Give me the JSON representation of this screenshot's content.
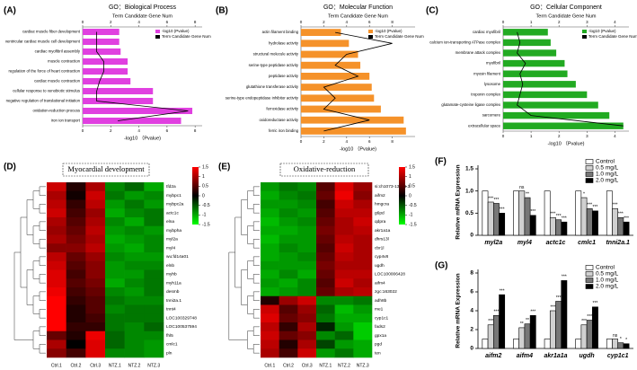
{
  "chart_data": [
    {
      "type": "bar",
      "orientation": "horizontal",
      "panel_label": "(A)",
      "title": "GO：Biological Process",
      "xlabel": "-log10 （Pvalue)",
      "x2label": "Term Candidate Gene Num",
      "categories": [
        "cardiac muscle fiber development",
        "ventricular cardiac muscle cell development",
        "cardiac myofibril assembly",
        "muscle contraction",
        "regulation of the force of heart contraction",
        "cardiac muscle contraction",
        "cellular response to xenobiotic stimulus",
        "negative regulation of translational initiation",
        "oxidation-reduction process",
        "iron ion transport"
      ],
      "series": [
        {
          "name": "-log10 (Pvalue)",
          "color": "#e040e0",
          "values": [
            2.6,
            2.6,
            2.7,
            3.2,
            3.2,
            3.4,
            5.0,
            5.0,
            7.8,
            7.0
          ]
        },
        {
          "name": "Term Candidate Gene Num",
          "color": "#000000",
          "axis": "x2",
          "values": [
            1,
            1,
            1,
            1.5,
            1.5,
            1.2,
            1,
            1,
            7.5,
            2.5
          ]
        }
      ],
      "xlim": [
        0,
        8.5
      ],
      "xticks": [
        0,
        2,
        4,
        6,
        8
      ],
      "x2lim": [
        0,
        8.5
      ],
      "x2ticks": [
        0,
        2,
        4,
        6,
        8
      ]
    },
    {
      "type": "bar",
      "orientation": "horizontal",
      "panel_label": "(B)",
      "title": "GO：Molecular Function",
      "xlabel": "-log10 （Pvalue)",
      "x2label": "Term Candidate Gene Num",
      "categories": [
        "actin filament binding",
        "hydrolase activity",
        "structural molecule activity",
        "serine-type peptidase activity",
        "peptidase activity",
        "glutathione transferase activity",
        "serine-type endopeptidase inhibitor activity",
        "ferroxidase activity",
        "oxidoreductase activity",
        "ferric iron binding"
      ],
      "series": [
        {
          "name": "-log10 (Pvalue)",
          "color": "#f5922a",
          "values": [
            3.5,
            4.2,
            5.0,
            5.2,
            6.0,
            6.2,
            6.4,
            7.0,
            9.0,
            9.2
          ]
        },
        {
          "name": "Term Candidate Gene Num",
          "color": "#000000",
          "axis": "x2",
          "values": [
            3,
            8,
            4,
            3,
            5,
            2,
            3,
            2,
            6,
            2
          ]
        }
      ],
      "xlim": [
        0,
        10
      ],
      "xticks": [
        0,
        2,
        4,
        6,
        8
      ],
      "x2lim": [
        0,
        10
      ],
      "x2ticks": [
        0,
        2,
        4,
        6,
        8
      ]
    },
    {
      "type": "bar",
      "orientation": "horizontal",
      "panel_label": "(C)",
      "title": "GO：Cellular Component",
      "xlabel": "-log10 （Pvalue)",
      "x2label": "Term Candidate Gene Num",
      "categories": [
        "cardiac myofibril",
        "calcium ion-transporting ATPase complex",
        "membrane attack complex",
        "myofibril",
        "myosin filament",
        "lysosome",
        "troponin complex",
        "glutamate-cysteine ligase complex",
        "sarcomere",
        "extracellular space"
      ],
      "series": [
        {
          "name": "-log10 (Pvalue)",
          "color": "#22aa22",
          "values": [
            1.6,
            1.7,
            1.9,
            2.2,
            2.3,
            2.6,
            3.0,
            3.4,
            3.8,
            4.3
          ]
        },
        {
          "name": "Term Candidate Gene Num",
          "color": "#000000",
          "axis": "x2",
          "values": [
            0.5,
            0.6,
            0.5,
            0.8,
            0.6,
            0.7,
            0.6,
            0.5,
            1.0,
            4.3
          ]
        }
      ],
      "xlim": [
        0,
        4.5
      ],
      "xticks": [
        0,
        1,
        2,
        3,
        4
      ],
      "x2lim": [
        0,
        4.5
      ],
      "x2ticks": [
        0,
        1,
        2,
        3,
        4
      ]
    },
    {
      "type": "heatmap",
      "panel_label": "(D)",
      "title": "Myocardial development",
      "columns": [
        "Ctrl.1",
        "Ctrl.2",
        "Ctrl.3",
        "NTZ.1",
        "NTZ.2",
        "NTZ.3"
      ],
      "rows": [
        "tfd2a",
        "mybpc1",
        "mybpc2a",
        "actc1c",
        "elna",
        "mybpha",
        "myl2a",
        "myl4",
        "wu:fd14a01",
        "elnb",
        "myhb",
        "myh11a",
        "desmb",
        "tnni2a.1",
        "tnnt4",
        "LOC100329748",
        "LOC100537594",
        "fhl5",
        "cmlc1",
        "pln"
      ],
      "values": [
        [
          1.2,
          0.2,
          1.0,
          -0.8,
          -0.6,
          -1.0
        ],
        [
          1.0,
          0.1,
          1.2,
          -0.7,
          -0.9,
          -0.8
        ],
        [
          1.1,
          0.3,
          1.1,
          -0.9,
          -0.7,
          -0.9
        ],
        [
          1.2,
          0.4,
          0.9,
          -1.0,
          -0.8,
          -0.7
        ],
        [
          1.0,
          0.5,
          1.0,
          -0.8,
          -1.0,
          -0.7
        ],
        [
          0.9,
          0.6,
          1.1,
          -0.9,
          -0.8,
          -0.9
        ],
        [
          1.0,
          0.7,
          1.0,
          -1.0,
          -0.9,
          -0.8
        ],
        [
          0.8,
          0.8,
          1.1,
          -0.9,
          -1.0,
          -0.8
        ],
        [
          1.1,
          0.6,
          0.9,
          -0.8,
          -0.9,
          -0.9
        ],
        [
          1.2,
          0.5,
          0.8,
          -0.9,
          -0.8,
          -0.8
        ],
        [
          1.3,
          0.4,
          0.8,
          -0.9,
          -0.9,
          -0.7
        ],
        [
          1.3,
          0.5,
          0.7,
          -1.0,
          -0.8,
          -0.7
        ],
        [
          1.4,
          0.4,
          0.6,
          -0.8,
          -0.9,
          -0.7
        ],
        [
          1.5,
          0.3,
          0.5,
          -0.7,
          -0.8,
          -0.8
        ],
        [
          1.5,
          0.2,
          0.5,
          -0.8,
          -0.7,
          -0.7
        ],
        [
          1.5,
          0.2,
          0.4,
          -0.7,
          -0.7,
          -0.7
        ],
        [
          1.5,
          0.3,
          0.3,
          -0.7,
          -0.8,
          -0.6
        ],
        [
          0.6,
          0.2,
          1.4,
          -0.6,
          -0.8,
          -0.8
        ],
        [
          1.0,
          0.0,
          1.3,
          -0.6,
          -0.8,
          -0.9
        ],
        [
          0.8,
          0.4,
          1.3,
          -0.8,
          -0.8,
          -0.9
        ]
      ],
      "zlim": [
        -1.5,
        1.5
      ],
      "zticks": [
        1.5,
        1,
        0.5,
        0,
        -0.5,
        -1,
        -1.5
      ],
      "colors": [
        "#00ff00",
        "#000000",
        "#ff0000"
      ]
    },
    {
      "type": "heatmap",
      "panel_label": "(E)",
      "title": "Oxidative-reduction",
      "columns": [
        "Ctrl.1",
        "Ctrl.2",
        "Ctrl.3",
        "NTZ.1",
        "NTZ.2",
        "NTZ.3"
      ],
      "rows": [
        "si:ch1073-13h15.3",
        "aifm2",
        "hmgcra",
        "g6pd",
        "qdpra",
        "akr1a1a",
        "dhrs13l",
        "cbr1l",
        "cyp4v8",
        "ugdh",
        "LOC100006428",
        "aifm4",
        "zgc:163022",
        "adh8b",
        "me1",
        "cyp1c1",
        "fads2",
        "gpx1a",
        "pgd",
        "ten"
      ],
      "values": [
        [
          -0.9,
          -0.7,
          -0.8,
          0.5,
          1.3,
          0.9
        ],
        [
          -1.0,
          -0.8,
          -0.7,
          0.6,
          1.4,
          0.8
        ],
        [
          -0.9,
          -0.9,
          -0.8,
          0.4,
          1.2,
          1.0
        ],
        [
          -1.0,
          -0.8,
          -0.9,
          0.5,
          1.1,
          1.1
        ],
        [
          -1.1,
          -0.9,
          -0.8,
          0.6,
          1.0,
          1.2
        ],
        [
          -1.0,
          -1.0,
          -0.9,
          0.7,
          1.0,
          1.1
        ],
        [
          -1.1,
          -0.9,
          -0.9,
          0.6,
          1.1,
          1.0
        ],
        [
          -1.0,
          -0.8,
          -0.9,
          0.5,
          1.2,
          1.0
        ],
        [
          -1.0,
          -0.9,
          -0.8,
          0.6,
          1.1,
          1.0
        ],
        [
          -0.9,
          -0.9,
          -0.9,
          0.7,
          1.0,
          1.0
        ],
        [
          -1.0,
          -0.8,
          -1.0,
          0.6,
          1.1,
          1.1
        ],
        [
          -0.9,
          -1.0,
          -0.8,
          0.5,
          1.2,
          1.0
        ],
        [
          -1.0,
          -0.9,
          -0.8,
          0.6,
          1.0,
          1.1
        ],
        [
          0.2,
          0.9,
          1.2,
          -0.8,
          -0.8,
          -0.7
        ],
        [
          1.2,
          0.5,
          0.9,
          -0.6,
          -1.1,
          -0.9
        ],
        [
          1.3,
          0.6,
          0.8,
          -0.7,
          -1.0,
          -1.0
        ],
        [
          1.1,
          0.3,
          1.0,
          -0.2,
          -0.9,
          -1.2
        ],
        [
          1.2,
          0.6,
          0.8,
          -0.8,
          -0.6,
          -1.2
        ],
        [
          1.1,
          0.2,
          1.0,
          -0.4,
          -0.9,
          -1.0
        ],
        [
          1.0,
          0.4,
          1.2,
          -0.9,
          -0.7,
          -1.0
        ]
      ],
      "zlim": [
        -1.5,
        1.5
      ],
      "zticks": [
        1.5,
        1,
        0.5,
        0,
        -0.5,
        -1,
        -1.5
      ],
      "colors": [
        "#00ff00",
        "#000000",
        "#ff0000"
      ]
    },
    {
      "type": "bar",
      "orientation": "vertical",
      "panel_label": "(F)",
      "ylabel": "Relative mRNA Expression",
      "categories": [
        "myl2a",
        "myl4",
        "actc1c",
        "cmlc1",
        "tnni2a.1"
      ],
      "series": [
        {
          "name": "Control",
          "color": "#ffffff",
          "values": [
            1.0,
            1.0,
            1.0,
            1.0,
            1.0
          ]
        },
        {
          "name": "0.5 mg/L",
          "color": "#d0d0d0",
          "values": [
            0.75,
            1.0,
            0.4,
            0.85,
            0.6
          ],
          "sig": [
            "***",
            "ns",
            "***",
            "*",
            "***"
          ]
        },
        {
          "name": "1.0 mg/L",
          "color": "#777777",
          "values": [
            0.72,
            0.85,
            0.35,
            0.6,
            0.4
          ],
          "sig": [
            "***",
            "**",
            "***",
            "***",
            "***"
          ]
        },
        {
          "name": "2.0 mg/L",
          "color": "#000000",
          "values": [
            0.5,
            0.45,
            0.3,
            0.55,
            0.3
          ],
          "sig": [
            "***",
            "***",
            "***",
            "***",
            "***"
          ]
        }
      ],
      "ylim": [
        0,
        1.5
      ],
      "yticks": [
        0,
        0.5,
        {
          "value": 1,
          "label": "1.0"
        },
        1.5
      ]
    },
    {
      "type": "bar",
      "orientation": "vertical",
      "panel_label": "(G)",
      "ylabel": "Relative mRNA Expression",
      "categories": [
        "aifm2",
        "aifm4",
        "akr1a1a",
        "ugdh",
        "cyp1c1"
      ],
      "series": [
        {
          "name": "Control",
          "color": "#ffffff",
          "values": [
            1,
            1,
            1,
            1,
            1
          ]
        },
        {
          "name": "0.5 mg/L",
          "color": "#d0d0d0",
          "values": [
            2.5,
            2.2,
            4.0,
            2.5,
            1.0
          ],
          "sig": [
            "***",
            "**",
            "***",
            "***",
            "ns"
          ]
        },
        {
          "name": "1.0 mg/L",
          "color": "#777777",
          "values": [
            3.5,
            2.6,
            5.0,
            3.0,
            0.6
          ],
          "sig": [
            "***",
            "**",
            "***",
            "***",
            "*"
          ]
        },
        {
          "name": "2.0 mg/L",
          "color": "#000000",
          "values": [
            5.7,
            3.5,
            7.2,
            4.4,
            0.5
          ],
          "sig": [
            "***",
            "***",
            "***",
            "***",
            "*"
          ]
        }
      ],
      "ylim": [
        0,
        8
      ],
      "yticks": [
        0,
        2,
        4,
        6,
        8
      ]
    }
  ]
}
